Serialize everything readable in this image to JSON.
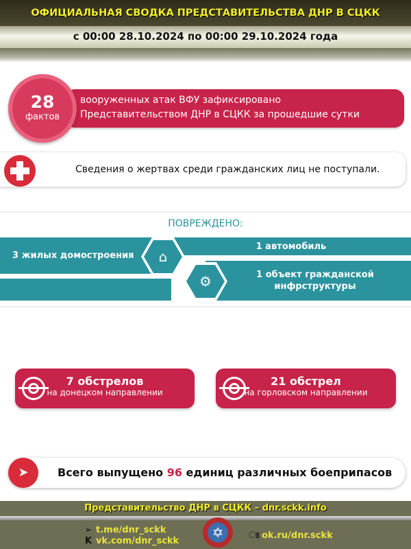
{
  "header": {
    "title": "ОФИЦИАЛЬНАЯ СВОДКА ПРЕДСТАВИТЕЛЬСТВА ДНР В СЦКК",
    "period": "с 00:00 28.10.2024 по 00:00 29.10.2024 года"
  },
  "attacks": {
    "count": "28",
    "unit": "фактов",
    "line1": "вооруженных атак ВФУ зафиксировано",
    "line2": "Представительством ДНР в СЦКК за прошедшие сутки"
  },
  "victims": {
    "icon": "medical-cross-icon",
    "text": "Сведения о жертвах среди гражданских лиц не поступали."
  },
  "damage": {
    "title": "ПОВРЕЖДЕНО:",
    "items": [
      {
        "label": "3 жилых домостроения",
        "icon": "house-icon"
      },
      {
        "label": "1 автомобиль"
      },
      {
        "label": "1 объект гражданской инфрструктуры",
        "icon": "gear-icon"
      }
    ]
  },
  "shelling": [
    {
      "count": "7 обстрелов",
      "direction": "на донецком направлении"
    },
    {
      "count": "21 обстрел",
      "direction": "на горловском направлении"
    }
  ],
  "ammo": {
    "prefix": "Всего выпущено",
    "number": "96",
    "suffix": "единиц различных боеприпасов"
  },
  "footer": {
    "org": "Представительство ДНР в СЦКК – dnr.sckk.info",
    "telegram": "t.me/dnr_sckk",
    "vk": "vk.com/dnr_sckk",
    "ok": "ok.ru/dnr.sckk"
  },
  "colors": {
    "crimson": "#c8234a",
    "teal": "#2a939e",
    "olive": "#6e6e55",
    "yellow": "#f2ee2a"
  }
}
